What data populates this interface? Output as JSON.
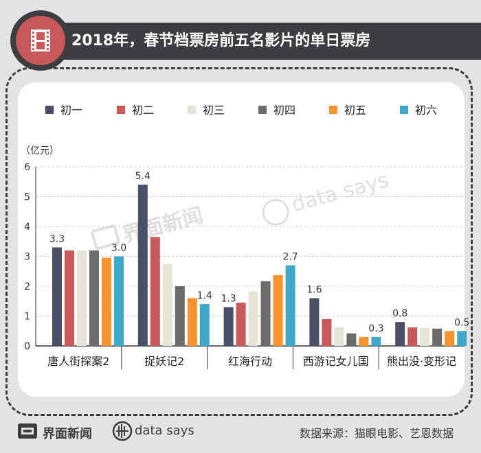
{
  "title": "2018年，春节档票房前五名影片的单日票房",
  "footer": {
    "logo_text": "界面新闻",
    "ds_text": "data says",
    "source": "数据来源：猫眼电影、艺恩数据"
  },
  "watermark": {
    "left": "界面新闻",
    "right": "data says"
  },
  "colors": {
    "title_bg": "#3c3d41",
    "icon_red": "#c8585a",
    "series": [
      "#4a5068",
      "#c8585a",
      "#e6e4d6",
      "#6b6b6b",
      "#f7922e",
      "#3fa8c9"
    ]
  },
  "chart_data": {
    "type": "bar",
    "ylabel": "（亿元）",
    "ylim": [
      0,
      6
    ],
    "yticks": [
      0,
      1,
      2,
      3,
      4,
      5,
      6
    ],
    "grid": true,
    "legend_position": "top",
    "categories": [
      "唐人街探案2",
      "捉妖记2",
      "红海行动",
      "西游记女儿国",
      "熊出没·变形记"
    ],
    "series": [
      {
        "name": "初一",
        "values": [
          3.3,
          5.4,
          1.3,
          1.6,
          0.8
        ]
      },
      {
        "name": "初二",
        "values": [
          3.2,
          3.65,
          1.45,
          0.9,
          0.62
        ]
      },
      {
        "name": "初三",
        "values": [
          3.2,
          2.75,
          1.83,
          0.62,
          0.6
        ]
      },
      {
        "name": "初四",
        "values": [
          3.2,
          2.0,
          2.17,
          0.42,
          0.58
        ]
      },
      {
        "name": "初五",
        "values": [
          2.95,
          1.6,
          2.37,
          0.3,
          0.5
        ]
      },
      {
        "name": "初六",
        "values": [
          3.0,
          1.4,
          2.7,
          0.3,
          0.5
        ]
      }
    ],
    "data_labels": [
      {
        "category": 0,
        "series": 0,
        "text": "3.3"
      },
      {
        "category": 0,
        "series": 5,
        "text": "3.0"
      },
      {
        "category": 1,
        "series": 0,
        "text": "5.4"
      },
      {
        "category": 1,
        "series": 5,
        "text": "1.4"
      },
      {
        "category": 2,
        "series": 0,
        "text": "1.3"
      },
      {
        "category": 2,
        "series": 5,
        "text": "2.7"
      },
      {
        "category": 3,
        "series": 0,
        "text": "1.6"
      },
      {
        "category": 3,
        "series": 5,
        "text": "0.3"
      },
      {
        "category": 4,
        "series": 0,
        "text": "0.8"
      },
      {
        "category": 4,
        "series": 5,
        "text": "0.5"
      }
    ]
  }
}
